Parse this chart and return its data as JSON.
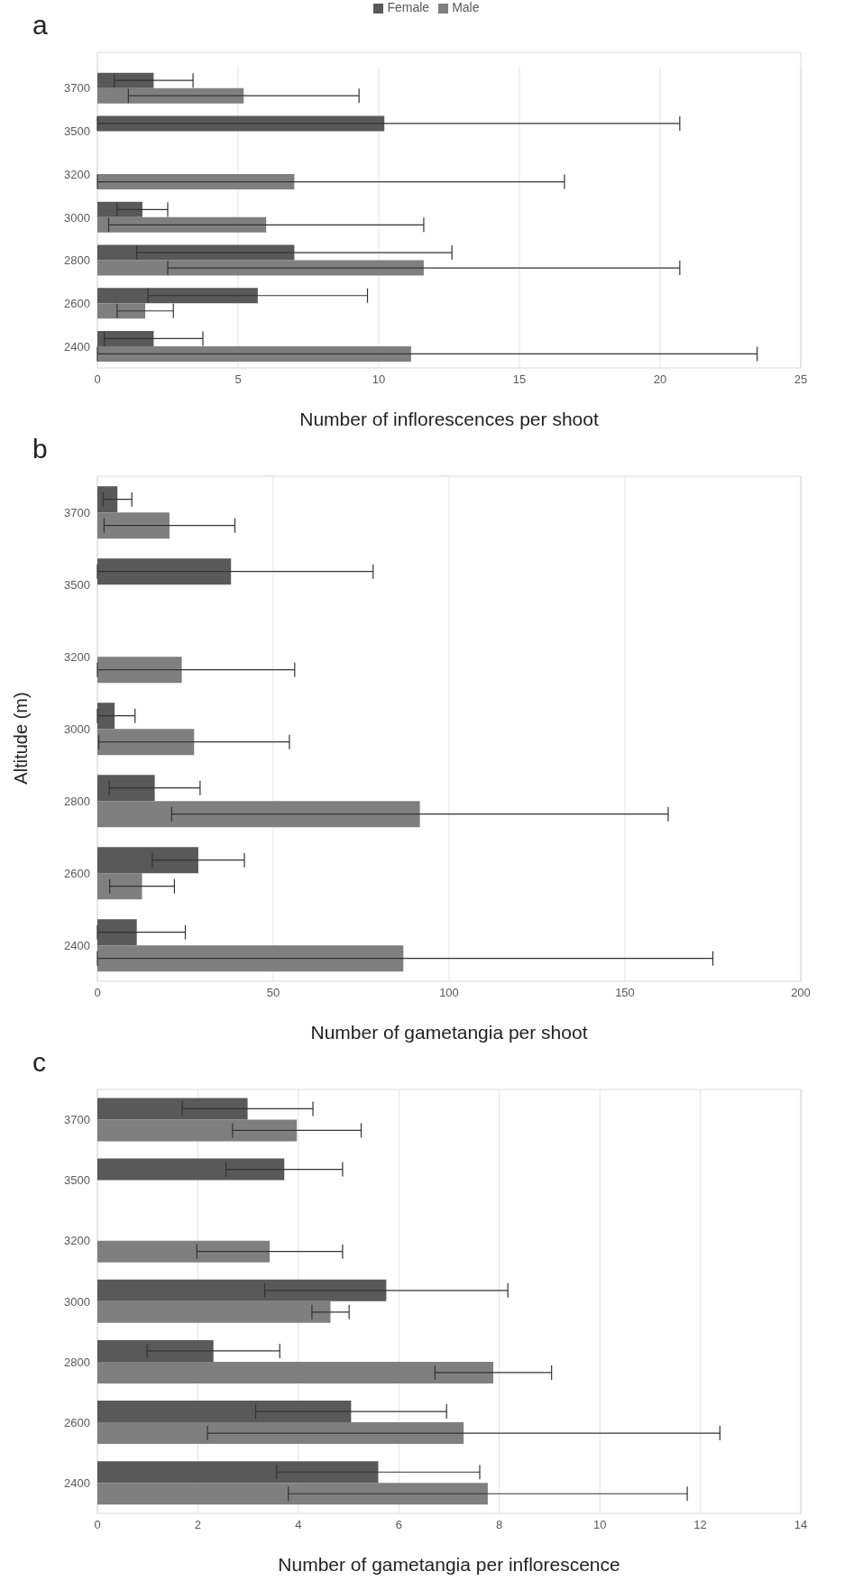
{
  "chart_data": [
    {
      "type": "bar",
      "orientation": "horizontal",
      "title": "a",
      "xlabel": "Number of inflorescences per shoot",
      "categories": [
        "3700",
        "3500",
        "3200",
        "3000",
        "2800",
        "2600",
        "2400"
      ],
      "xlim": [
        0,
        25
      ],
      "xticks": [
        0,
        5,
        10,
        15,
        20,
        25
      ],
      "grid": "x",
      "legend": "top",
      "series": [
        {
          "name": "Female",
          "color": "#595959",
          "values": [
            2.0,
            10.2,
            null,
            1.6,
            7.0,
            5.7,
            2.0
          ],
          "errors": [
            1.4,
            [
              0,
              20.7
            ],
            null,
            0.9,
            5.6,
            3.9,
            1.75
          ]
        },
        {
          "name": "Male",
          "color": "#7f7f7f",
          "values": [
            5.2,
            null,
            7.0,
            6.0,
            11.6,
            1.7,
            11.15
          ],
          "errors": [
            4.1,
            null,
            [
              0,
              16.6
            ],
            5.6,
            9.1,
            1.0,
            [
              0,
              23.45
            ]
          ]
        }
      ]
    },
    {
      "type": "bar",
      "orientation": "horizontal",
      "title": "b",
      "xlabel": "Number of gametangia per shoot",
      "ylabel": "Altitude (m)",
      "categories": [
        "3700",
        "3500",
        "3200",
        "3000",
        "2800",
        "2600",
        "2400"
      ],
      "xlim": [
        0,
        200
      ],
      "xticks": [
        0,
        50,
        100,
        150,
        200
      ],
      "grid": "x",
      "series": [
        {
          "color": "#595959",
          "values": [
            5.7,
            38,
            null,
            4.9,
            16.3,
            28.7,
            11.2
          ],
          "errors": [
            4.1,
            [
              0,
              78.4
            ],
            null,
            [
              0,
              10.7
            ],
            12.9,
            13.1,
            [
              0,
              25
            ]
          ]
        },
        {
          "color": "#7f7f7f",
          "values": [
            20.5,
            null,
            24,
            27.5,
            91.7,
            12.7,
            87
          ],
          "errors": [
            18.6,
            null,
            [
              0,
              56.1
            ],
            27.1,
            70.6,
            9.2,
            [
              0,
              175
            ]
          ]
        }
      ]
    },
    {
      "type": "bar",
      "orientation": "horizontal",
      "title": "c",
      "xlabel": "Number of gametangia per inflorescence",
      "categories": [
        "3700",
        "3500",
        "3200",
        "3000",
        "2800",
        "2600",
        "2400"
      ],
      "xlim": [
        0,
        14
      ],
      "xticks": [
        0,
        2,
        4,
        6,
        8,
        10,
        12,
        14
      ],
      "grid": "x",
      "series": [
        {
          "color": "#595959",
          "values": [
            2.99,
            3.72,
            null,
            5.75,
            2.31,
            5.05,
            5.59
          ],
          "errors": [
            1.3,
            1.16,
            null,
            2.42,
            1.32,
            1.9,
            2.02
          ]
        },
        {
          "color": "#7f7f7f",
          "values": [
            3.97,
            null,
            3.43,
            4.64,
            7.88,
            7.29,
            7.77
          ],
          "errors": [
            1.28,
            null,
            1.45,
            0.37,
            1.16,
            5.1,
            3.97
          ]
        }
      ]
    }
  ]
}
